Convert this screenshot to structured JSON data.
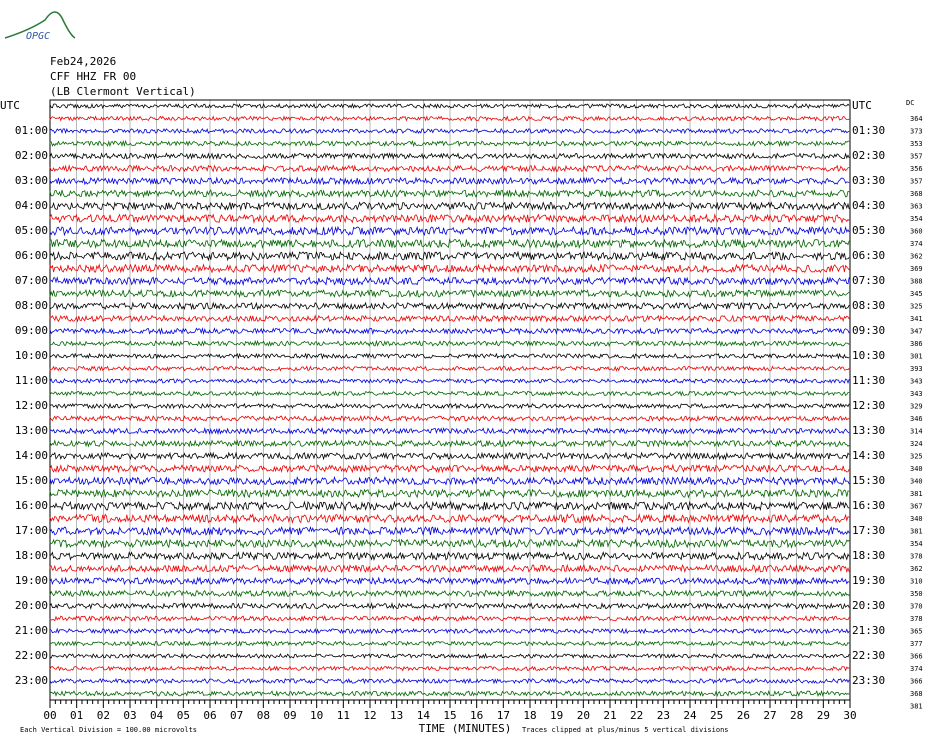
{
  "logo": "OPGC",
  "header": {
    "date": "Feb24,2026",
    "station": "CFF HHZ FR 00",
    "location": "(LB Clermont Vertical)"
  },
  "left_labels": [
    "UTC",
    "01:00",
    "02:00",
    "03:00",
    "04:00",
    "05:00",
    "06:00",
    "07:00",
    "08:00",
    "09:00",
    "10:00",
    "11:00",
    "12:00",
    "13:00",
    "14:00",
    "15:00",
    "16:00",
    "17:00",
    "18:00",
    "19:00",
    "20:00",
    "21:00",
    "22:00",
    "23:00"
  ],
  "right_labels": [
    "UTC",
    "01:30",
    "02:30",
    "03:30",
    "04:30",
    "05:30",
    "06:30",
    "07:30",
    "08:30",
    "09:30",
    "10:30",
    "11:30",
    "12:30",
    "13:30",
    "14:30",
    "15:30",
    "16:30",
    "17:30",
    "18:30",
    "19:30",
    "20:30",
    "21:30",
    "22:30",
    "23:30"
  ],
  "dc_title": "DC",
  "dc_offsets": [
    364,
    373,
    353,
    357,
    356,
    357,
    368,
    363,
    354,
    360,
    374,
    362,
    369,
    388,
    345,
    325,
    341,
    347,
    386,
    301,
    393,
    343,
    343,
    329,
    346,
    314,
    324,
    325,
    340,
    340,
    381,
    367,
    340,
    381,
    354,
    378,
    362,
    310,
    350,
    370,
    378,
    365,
    377,
    366,
    374,
    366,
    368,
    381
  ],
  "x_labels": [
    "00",
    "01",
    "02",
    "03",
    "04",
    "05",
    "06",
    "07",
    "08",
    "09",
    "10",
    "11",
    "12",
    "13",
    "14",
    "15",
    "16",
    "17",
    "18",
    "19",
    "20",
    "21",
    "22",
    "23",
    "24",
    "25",
    "26",
    "27",
    "28",
    "29",
    "30"
  ],
  "x_title": "TIME (MINUTES)",
  "footer": {
    "division": "Each Vertical Division =  100.00 microvolts",
    "clip": "Traces clipped at plus/minus 5 vertical divisions"
  }
}
